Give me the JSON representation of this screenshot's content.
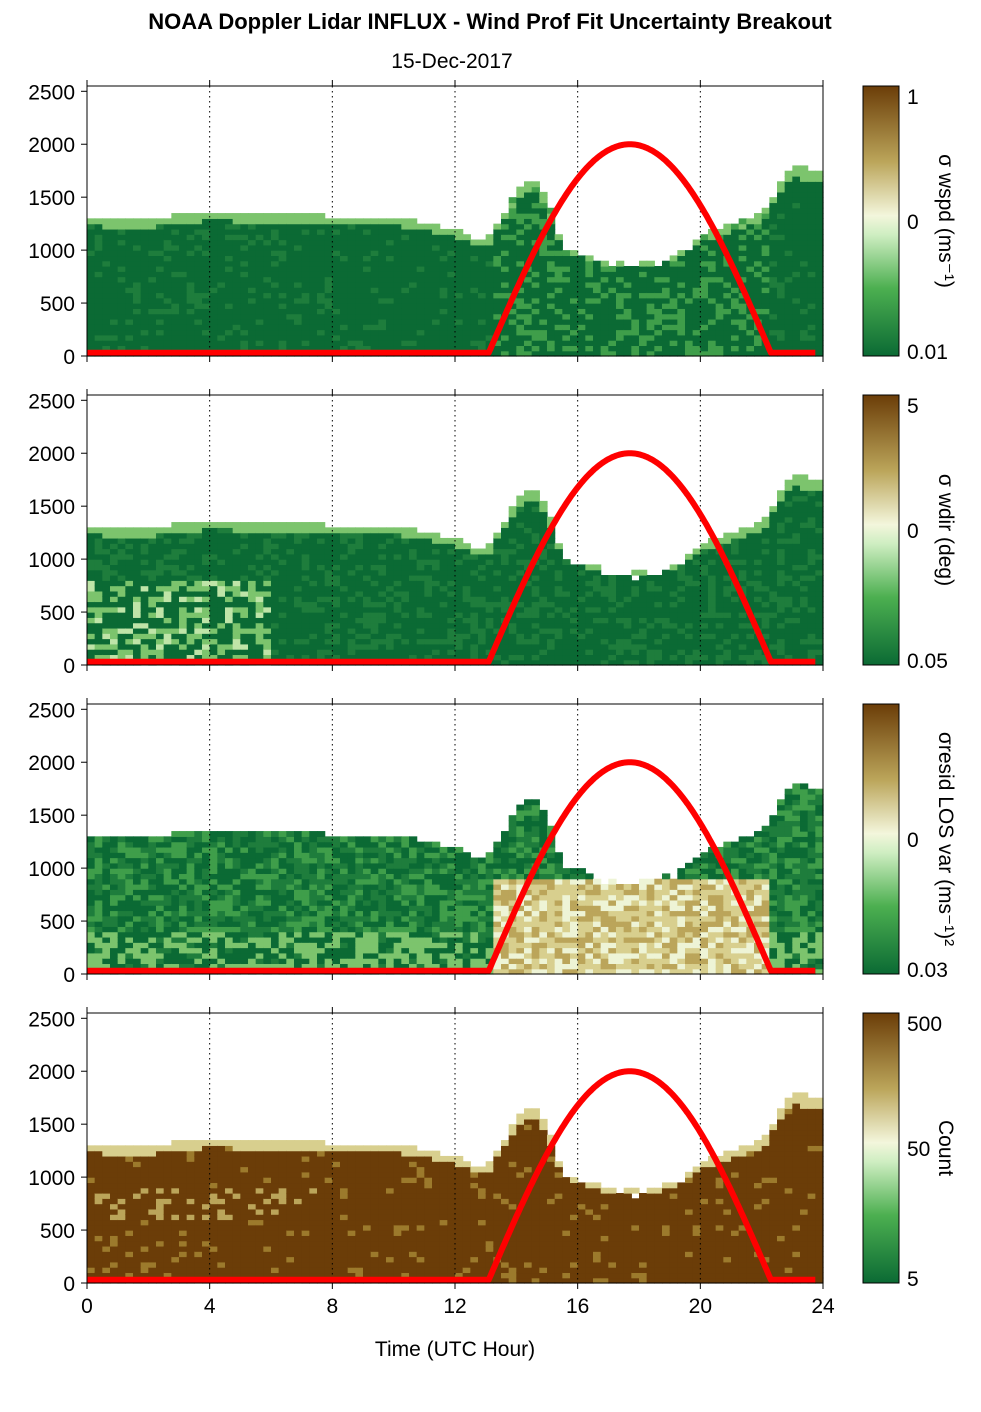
{
  "title": "NOAA Doppler Lidar INFLUX - Wind Prof Fit Uncertainty Breakout",
  "subtitle": "15-Dec-2017",
  "colors": {
    "dark_green": "#0b6a34",
    "mid_green": "#4caf50",
    "pale": "#f0f5d9",
    "tan": "#bba55a",
    "dark_brown": "#6b3d08",
    "daylight_curve": "#ff0000"
  },
  "chart_data": [
    {
      "type": "heatmap",
      "panel": 1,
      "xlabel": "",
      "ylabel": "",
      "xlim": [
        0,
        24
      ],
      "ylim": [
        0,
        2550
      ],
      "x_ticks": [
        0,
        4,
        8,
        12,
        16,
        20,
        24
      ],
      "y_ticks": [
        0,
        500,
        1000,
        1500,
        2000,
        2500
      ],
      "y_tick_labels": [
        "0",
        "500",
        "1000",
        "1500",
        "2000",
        "2500"
      ],
      "grid": "vertical dotted at x ticks",
      "colorbar": {
        "label": "σ wspd (ms⁻¹)",
        "ticks": [
          "1",
          "0",
          "0.01"
        ],
        "scale": "log"
      },
      "data_top_height_m": {
        "time_utc_hour": [
          0,
          1,
          2,
          3,
          4,
          6,
          8,
          10,
          11,
          12,
          13,
          14,
          14.5,
          15,
          15.5,
          16,
          17,
          18,
          19,
          20,
          21,
          22,
          23,
          23.8
        ],
        "height": [
          1330,
          1280,
          1290,
          1340,
          1360,
          1350,
          1320,
          1310,
          1260,
          1200,
          1080,
          1550,
          1700,
          1500,
          1050,
          1000,
          900,
          880,
          950,
          1150,
          1250,
          1350,
          1800,
          1750
        ]
      },
      "daylight_curve": {
        "sunrise_utc_hour": 13.1,
        "sunset_utc_hour": 22.3,
        "peak_utc_hour": 17.6,
        "peak_height_m": 2000
      }
    },
    {
      "type": "heatmap",
      "panel": 2,
      "xlabel": "",
      "ylabel": "",
      "xlim": [
        0,
        24
      ],
      "ylim": [
        0,
        2550
      ],
      "x_ticks": [
        0,
        4,
        8,
        12,
        16,
        20,
        24
      ],
      "y_ticks": [
        0,
        500,
        1000,
        1500,
        2000,
        2500
      ],
      "y_tick_labels": [
        "0",
        "500",
        "1000",
        "1500",
        "2000",
        "2500"
      ],
      "grid": "vertical dotted at x ticks",
      "colorbar": {
        "label": "σ wdir (deg)",
        "ticks": [
          "5",
          "0",
          "0.05"
        ],
        "scale": "log"
      },
      "daylight_curve": {
        "sunrise_utc_hour": 13.1,
        "sunset_utc_hour": 22.3,
        "peak_utc_hour": 17.6,
        "peak_height_m": 2000
      }
    },
    {
      "type": "heatmap",
      "panel": 3,
      "xlabel": "",
      "ylabel": "",
      "xlim": [
        0,
        24
      ],
      "ylim": [
        0,
        2550
      ],
      "x_ticks": [
        0,
        4,
        8,
        12,
        16,
        20,
        24
      ],
      "y_ticks": [
        0,
        500,
        1000,
        1500,
        2000,
        2500
      ],
      "y_tick_labels": [
        "0",
        "500",
        "1000",
        "1500",
        "2000",
        "2500"
      ],
      "grid": "vertical dotted at x ticks",
      "colorbar": {
        "label": "σresid LOS var (ms⁻¹)²",
        "ticks": [
          "0",
          "0.03"
        ],
        "scale": "log"
      },
      "daylight_curve": {
        "sunrise_utc_hour": 13.1,
        "sunset_utc_hour": 22.3,
        "peak_utc_hour": 17.6,
        "peak_height_m": 2000
      }
    },
    {
      "type": "heatmap",
      "panel": 4,
      "xlabel": "Time (UTC Hour)",
      "ylabel": "",
      "xlim": [
        0,
        24
      ],
      "ylim": [
        0,
        2550
      ],
      "x_ticks": [
        0,
        4,
        8,
        12,
        16,
        20,
        24
      ],
      "x_tick_labels": [
        "0",
        "4",
        "8",
        "12",
        "16",
        "20",
        "24"
      ],
      "y_ticks": [
        0,
        500,
        1000,
        1500,
        2000,
        2500
      ],
      "y_tick_labels": [
        "0",
        "500",
        "1000",
        "1500",
        "2000",
        "2500"
      ],
      "grid": "vertical dotted at x ticks",
      "colorbar": {
        "label": "Count",
        "ticks": [
          "500",
          "50",
          "5"
        ],
        "scale": "log"
      },
      "daylight_curve": {
        "sunrise_utc_hour": 13.1,
        "sunset_utc_hour": 22.3,
        "peak_utc_hour": 17.6,
        "peak_height_m": 2000
      }
    }
  ]
}
